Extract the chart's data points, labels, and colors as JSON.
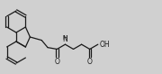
{
  "bg_color": "#d0d0d0",
  "line_color": "#1a1a1a",
  "line_width": 0.9,
  "figsize": [
    1.8,
    0.82
  ],
  "dpi": 100,
  "xlim": [
    0,
    180
  ],
  "ylim": [
    0,
    82
  ]
}
